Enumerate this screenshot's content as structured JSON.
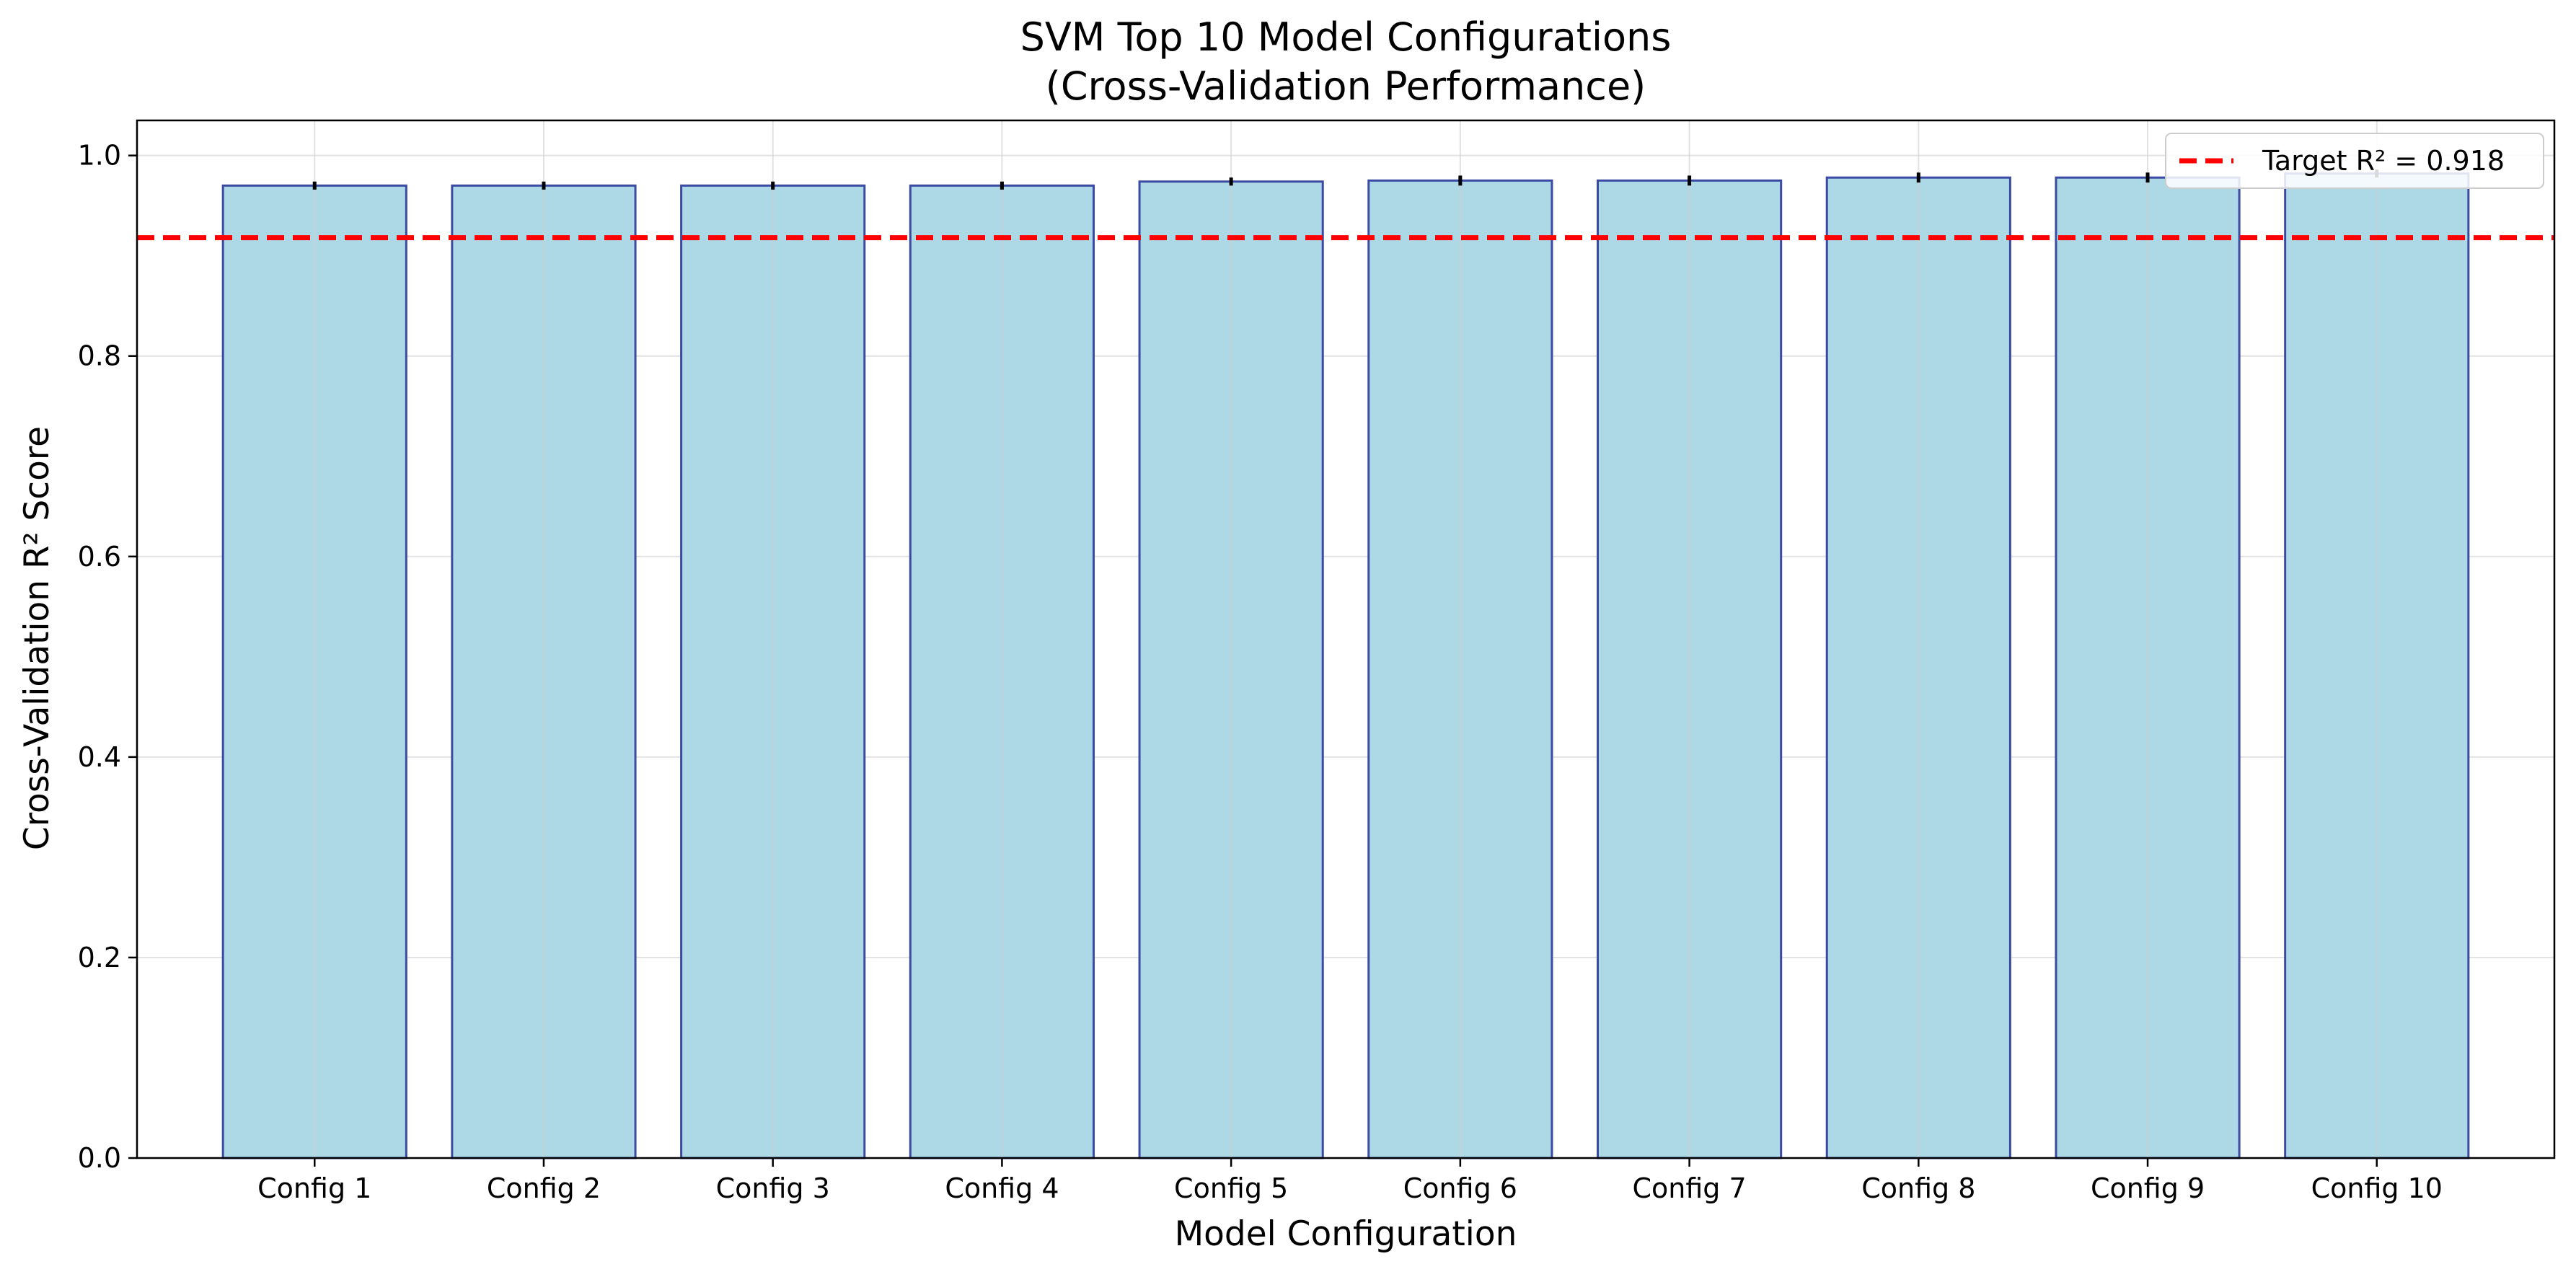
{
  "chart_data": {
    "type": "bar",
    "title_lines": [
      "SVM Top 10 Model Configurations",
      "(Cross-Validation Performance)"
    ],
    "xlabel": "Model Configuration",
    "ylabel": "Cross-Validation R² Score",
    "categories": [
      "Config 1",
      "Config 2",
      "Config 3",
      "Config 4",
      "Config 5",
      "Config 6",
      "Config 7",
      "Config 8",
      "Config 9",
      "Config 10"
    ],
    "values": [
      0.97,
      0.97,
      0.97,
      0.97,
      0.974,
      0.975,
      0.975,
      0.978,
      0.978,
      0.982
    ],
    "errors": [
      0.004,
      0.004,
      0.004,
      0.004,
      0.004,
      0.005,
      0.005,
      0.005,
      0.005,
      0.004
    ],
    "ylim": [
      0,
      1.035
    ],
    "yticks": [
      "0.0",
      "0.2",
      "0.4",
      "0.6",
      "0.8",
      "1.0"
    ],
    "reference_line": {
      "value": 0.918,
      "label": "Target R² = 0.918",
      "color": "#ff0000",
      "style": "dashed"
    },
    "bar_color": "#add8e6",
    "bar_edge_color": "#3b4ba3",
    "error_bar_color": "#000000",
    "grid": true,
    "legend_position": "top-right"
  }
}
